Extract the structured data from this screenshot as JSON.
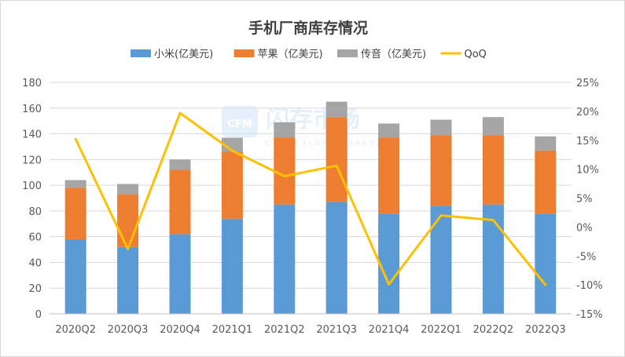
{
  "chart_data": {
    "type": "bar",
    "stacked": true,
    "title": "手机厂商库存情况",
    "categories": [
      "2020Q2",
      "2020Q3",
      "2020Q4",
      "2021Q1",
      "2021Q2",
      "2021Q3",
      "2021Q4",
      "2022Q1",
      "2022Q2",
      "2022Q3"
    ],
    "series": [
      {
        "name": "小米(亿美元)",
        "color": "#5b9bd5",
        "axis": "left",
        "kind": "bar",
        "values": [
          58,
          52,
          62,
          74,
          85,
          87,
          78,
          84,
          85,
          78
        ]
      },
      {
        "name": "苹果（亿美元)",
        "color": "#ed7d31",
        "axis": "left",
        "kind": "bar",
        "values": [
          40,
          41,
          50,
          52,
          52,
          66,
          59,
          55,
          54,
          49
        ]
      },
      {
        "name": "传音（亿美元)",
        "color": "#a5a5a5",
        "axis": "left",
        "kind": "bar",
        "values": [
          6,
          8,
          8,
          11,
          12,
          12,
          11,
          12,
          14,
          11
        ]
      },
      {
        "name": "QoQ",
        "color": "#ffc000",
        "axis": "right",
        "kind": "line",
        "values": [
          15.2,
          -3.8,
          19.7,
          13.2,
          8.8,
          10.6,
          -9.9,
          2.0,
          1.2,
          -10.0
        ]
      }
    ],
    "ylim_left": [
      0,
      180
    ],
    "yticks_left": [
      "0",
      "20",
      "40",
      "60",
      "80",
      "100",
      "120",
      "140",
      "160",
      "180"
    ],
    "ylim_right": [
      -15,
      25
    ],
    "yticks_right": [
      "-15%",
      "-10%",
      "-5%",
      "0%",
      "5%",
      "10%",
      "15%",
      "20%",
      "25%"
    ],
    "legend_position": "top",
    "grid": true
  },
  "watermark": {
    "text": "闪存市场",
    "logo": "CFM",
    "sub": "CHINA FLASH MARKET"
  }
}
